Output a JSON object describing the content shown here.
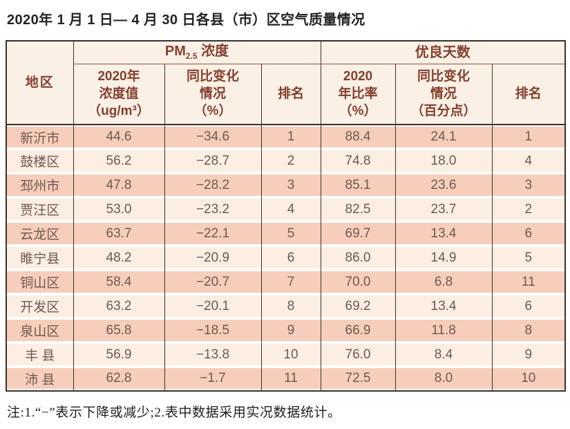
{
  "page": {
    "title": "2020年 1 月 1 日— 4 月 30 日各县（市）区空气质量情况",
    "note": "注:1.“−”表示下降或减少;2.表中数据采用实况数据统计。"
  },
  "colors": {
    "row_salmon": "#f7cdbb",
    "row_cream": "#fceee3",
    "header_bg": "#fbf0e5",
    "header_text": "#833f2e",
    "data_text": "#6f5950",
    "border_dark": "#39302a",
    "group_divider": "#97503a"
  },
  "table": {
    "header": {
      "region": "地区",
      "pm_group": {
        "main": "PM",
        "sub": "2.5",
        "rest": " 浓度"
      },
      "good_group": "优良天数",
      "sub_headers": [
        "2020年\n浓度值\n（ug/m³）",
        "同比变化\n情况\n（%）",
        "排名",
        "2020\n年比率\n（%）",
        "同比变化\n情况\n（百分点）",
        "排名"
      ]
    },
    "rows": [
      {
        "region": "新沂市",
        "pm_value": "44.6",
        "pm_change": "−34.6",
        "pm_rank": "1",
        "good_rate": "88.4",
        "good_change": "24.1",
        "good_rank": "1"
      },
      {
        "region": "鼓楼区",
        "pm_value": "56.2",
        "pm_change": "−28.7",
        "pm_rank": "2",
        "good_rate": "74.8",
        "good_change": "18.0",
        "good_rank": "4"
      },
      {
        "region": "邳州市",
        "pm_value": "47.8",
        "pm_change": "−28.2",
        "pm_rank": "3",
        "good_rate": "85.1",
        "good_change": "23.6",
        "good_rank": "3"
      },
      {
        "region": "贾汪区",
        "pm_value": "53.0",
        "pm_change": "−23.2",
        "pm_rank": "4",
        "good_rate": "82.5",
        "good_change": "23.7",
        "good_rank": "2"
      },
      {
        "region": "云龙区",
        "pm_value": "63.7",
        "pm_change": "−22.1",
        "pm_rank": "5",
        "good_rate": "69.7",
        "good_change": "13.4",
        "good_rank": "6"
      },
      {
        "region": "睢宁县",
        "pm_value": "48.2",
        "pm_change": "−20.9",
        "pm_rank": "6",
        "good_rate": "86.0",
        "good_change": "14.9",
        "good_rank": "5"
      },
      {
        "region": "铜山区",
        "pm_value": "58.4",
        "pm_change": "−20.7",
        "pm_rank": "7",
        "good_rate": "70.0",
        "good_change": "6.8",
        "good_rank": "11"
      },
      {
        "region": "开发区",
        "pm_value": "63.2",
        "pm_change": "−20.1",
        "pm_rank": "8",
        "good_rate": "69.2",
        "good_change": "13.4",
        "good_rank": "6"
      },
      {
        "region": "泉山区",
        "pm_value": "65.8",
        "pm_change": "−18.5",
        "pm_rank": "9",
        "good_rate": "66.9",
        "good_change": "11.8",
        "good_rank": "8"
      },
      {
        "region": "丰 县",
        "pm_value": "56.9",
        "pm_change": "−13.8",
        "pm_rank": "10",
        "good_rate": "76.0",
        "good_change": "8.4",
        "good_rank": "9"
      },
      {
        "region": "沛 县",
        "pm_value": "62.8",
        "pm_change": "−1.7",
        "pm_rank": "11",
        "good_rate": "72.5",
        "good_change": "8.0",
        "good_rank": "10"
      }
    ]
  }
}
